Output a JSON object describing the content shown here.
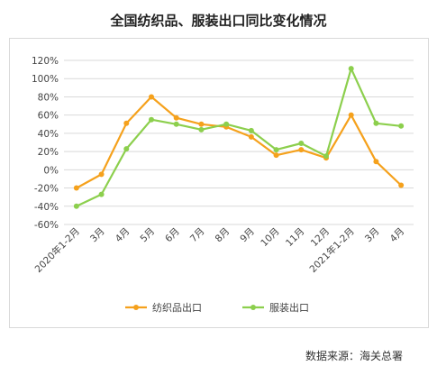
{
  "chart_data": {
    "type": "line",
    "title": "全国纺织品、服装出口同比变化情况",
    "xlabel": "",
    "ylabel": "",
    "categories": [
      "2020年1-2月",
      "3月",
      "4月",
      "5月",
      "6月",
      "7月",
      "8月",
      "9月",
      "10月",
      "11月",
      "12月",
      "2021年1-2月",
      "3月",
      "4月"
    ],
    "ylim": [
      -60,
      120
    ],
    "yticks": [
      -60,
      -40,
      -20,
      0,
      20,
      40,
      60,
      80,
      100,
      120
    ],
    "ytick_labels": [
      "-60%",
      "-40%",
      "-20%",
      "0%",
      "20%",
      "40%",
      "60%",
      "80%",
      "100%",
      "120%"
    ],
    "grid": true,
    "legend": "bottom",
    "series": [
      {
        "name": "纺织品出口",
        "color": "#f5a11c",
        "values": [
          -20,
          -5,
          51,
          80,
          57,
          50,
          47,
          36,
          16,
          22,
          13,
          60,
          9,
          -17
        ]
      },
      {
        "name": "服装出口",
        "color": "#8ccf4d",
        "values": [
          -40,
          -27,
          23,
          55,
          50,
          44,
          50,
          43,
          22,
          29,
          15,
          111,
          51,
          48
        ]
      }
    ]
  },
  "source_note": "数据来源：海关总署"
}
